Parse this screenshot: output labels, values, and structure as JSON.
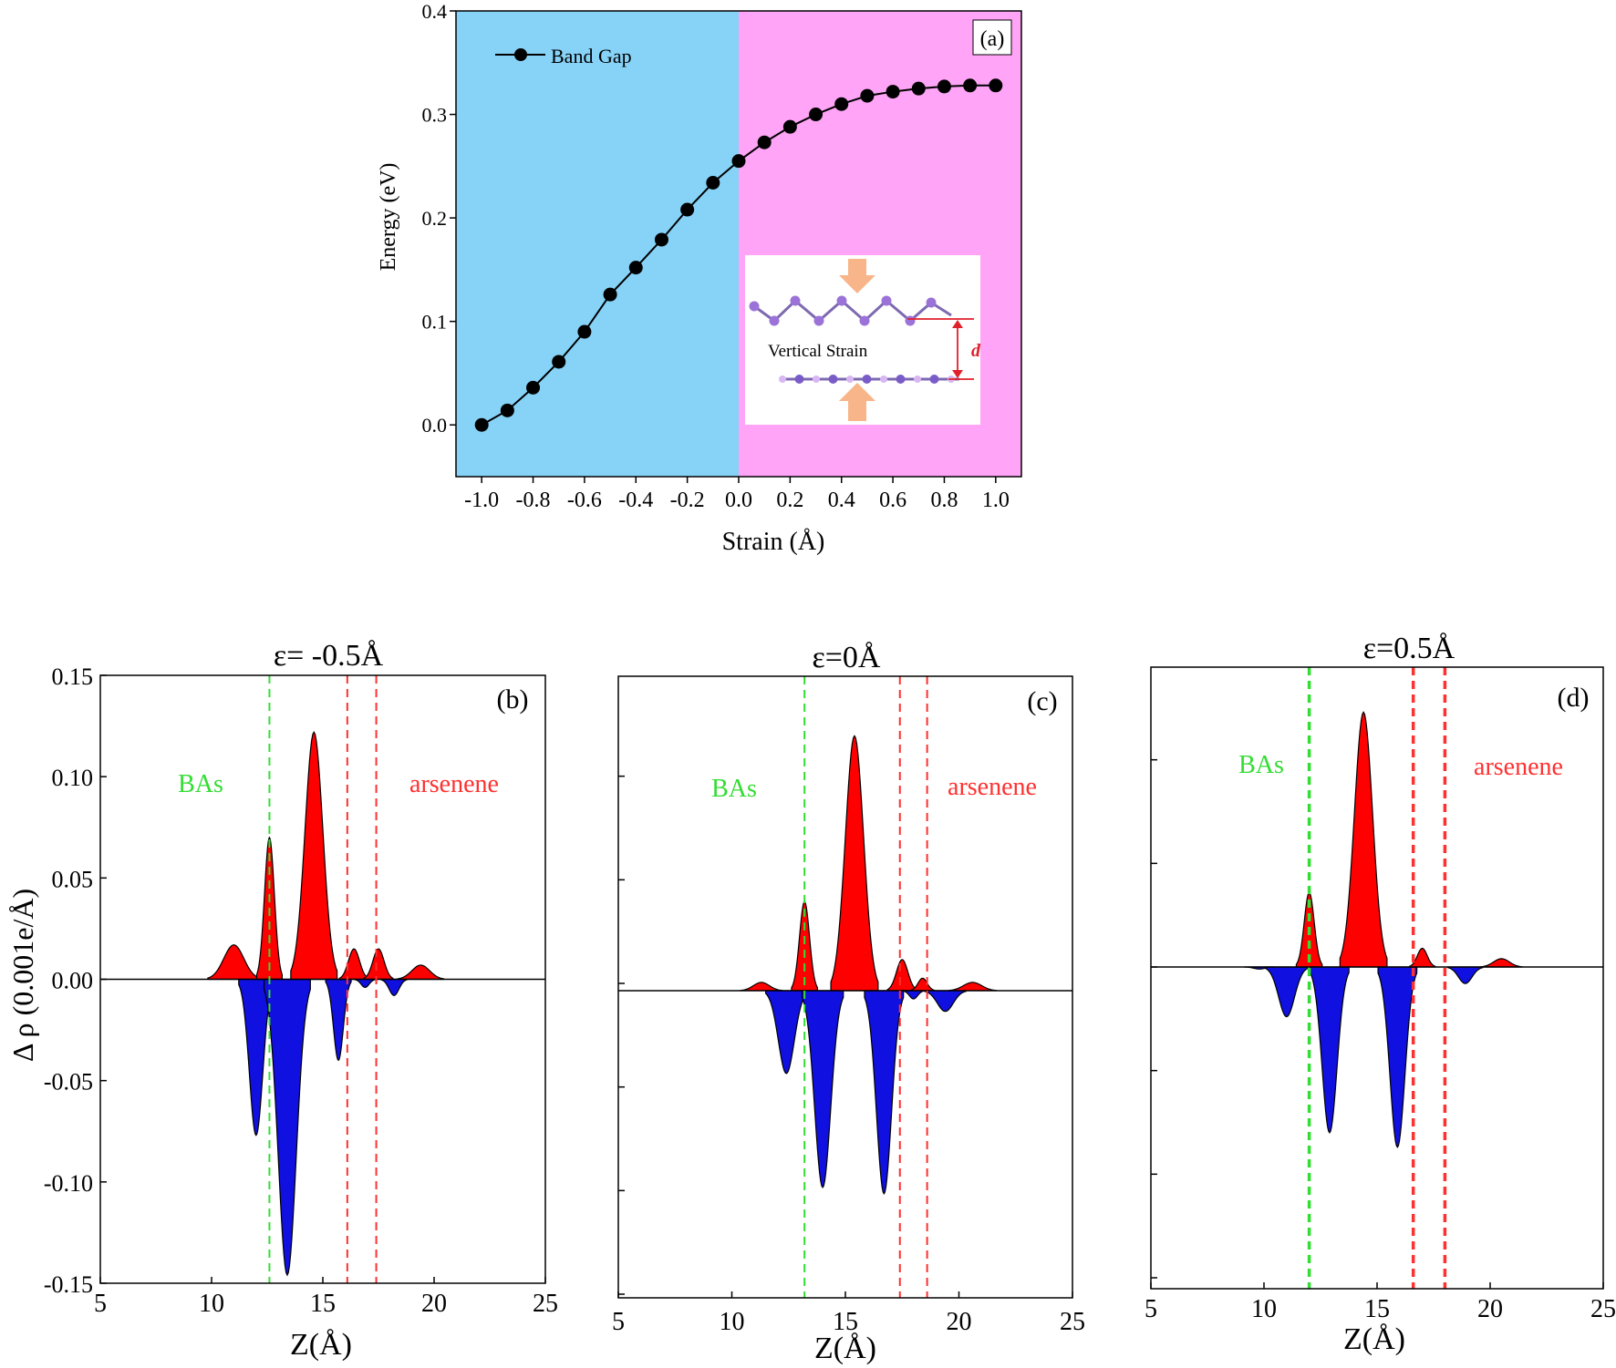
{
  "colors": {
    "compressive_region": "#87D3F8",
    "tensile_region": "#FFA4F6",
    "positive_fill": "#FF0000",
    "negative_fill": "#1010E0",
    "bas_line": "#33DD33",
    "arsenene_line": "#FF3030",
    "inset_arrow": "#F8B58A",
    "inset_atom": "#9B72D8",
    "inset_d": "#E0202A"
  },
  "chart_data": [
    {
      "id": "a",
      "type": "line",
      "panel_label": "(a)",
      "xlabel": "Strain (Å)",
      "ylabel": "Energy (eV)",
      "xlim": [
        -1.1,
        1.1
      ],
      "ylim": [
        -0.05,
        0.4
      ],
      "xticks": [
        -1.0,
        -0.8,
        -0.6,
        -0.4,
        -0.2,
        0.0,
        0.2,
        0.4,
        0.6,
        0.8,
        1.0
      ],
      "xtick_labels": [
        "-1.0",
        "-0.8",
        "-0.6",
        "-0.4",
        "-0.2",
        "0.0",
        "0.2",
        "0.4",
        "0.6",
        "0.8",
        "1.0"
      ],
      "yticks": [
        0.0,
        0.1,
        0.2,
        0.3,
        0.4
      ],
      "ytick_labels": [
        "0.0",
        "0.1",
        "0.2",
        "0.3",
        "0.4"
      ],
      "legend": "top-left",
      "series": [
        {
          "name": "Band Gap",
          "x": [
            -1.0,
            -0.9,
            -0.8,
            -0.7,
            -0.6,
            -0.5,
            -0.4,
            -0.3,
            -0.2,
            -0.1,
            0.0,
            0.1,
            0.2,
            0.3,
            0.4,
            0.5,
            0.6,
            0.7,
            0.8,
            0.9,
            1.0
          ],
          "y": [
            0.0,
            0.014,
            0.036,
            0.061,
            0.09,
            0.126,
            0.152,
            0.179,
            0.208,
            0.234,
            0.255,
            0.273,
            0.288,
            0.3,
            0.31,
            0.318,
            0.322,
            0.325,
            0.327,
            0.328,
            0.328
          ]
        }
      ],
      "inset": {
        "label": "Vertical Strain",
        "d_label": "d"
      }
    },
    {
      "id": "b",
      "type": "area",
      "title": "ε= -0.5Å",
      "panel_label": "(b)",
      "xlabel": "Z(Å)",
      "ylabel": "Δ ρ (0.001e/Å)",
      "xlim": [
        5,
        25
      ],
      "ylim": [
        -0.15,
        0.15
      ],
      "xticks": [
        5,
        10,
        15,
        20,
        25
      ],
      "xtick_labels": [
        "5",
        "10",
        "15",
        "20",
        "25"
      ],
      "yticks": [
        -0.15,
        -0.1,
        -0.05,
        0.0,
        0.05,
        0.1,
        0.15
      ],
      "ytick_labels": [
        "-0.15",
        "-0.10",
        "-0.05",
        "0.00",
        "0.05",
        "0.10",
        "0.15"
      ],
      "region_labels": [
        "BAs",
        "arsenene"
      ],
      "bas_line_x": 12.6,
      "arsenene_lines_x": [
        16.1,
        17.4
      ],
      "peaks": [
        {
          "x": 11.0,
          "y": 0.017,
          "w": 0.45
        },
        {
          "x": 12.0,
          "y": -0.077,
          "w": 0.3
        },
        {
          "x": 12.6,
          "y": 0.07,
          "w": 0.22
        },
        {
          "x": 13.4,
          "y": -0.146,
          "w": 0.4
        },
        {
          "x": 14.6,
          "y": 0.122,
          "w": 0.4
        },
        {
          "x": 15.7,
          "y": -0.04,
          "w": 0.22
        },
        {
          "x": 16.4,
          "y": 0.015,
          "w": 0.25
        },
        {
          "x": 16.9,
          "y": -0.004,
          "w": 0.18
        },
        {
          "x": 17.5,
          "y": 0.015,
          "w": 0.25
        },
        {
          "x": 18.2,
          "y": -0.008,
          "w": 0.22
        },
        {
          "x": 19.4,
          "y": 0.007,
          "w": 0.4
        }
      ]
    },
    {
      "id": "c",
      "type": "area",
      "title": "ε=0Å",
      "panel_label": "(c)",
      "xlabel": "Z(Å)",
      "xlim": [
        5,
        25
      ],
      "ylim": [
        -0.15,
        0.15
      ],
      "xticks": [
        5,
        10,
        15,
        20,
        25
      ],
      "xtick_labels": [
        "5",
        "10",
        "15",
        "20",
        "25"
      ],
      "yticks": [
        -0.15,
        -0.1,
        -0.05,
        0.0,
        0.05,
        0.1,
        0.15
      ],
      "ytick_labels": [],
      "region_labels": [
        "BAs",
        "arsenene"
      ],
      "bas_line_x": 13.2,
      "arsenene_lines_x": [
        17.4,
        18.6
      ],
      "peaks": [
        {
          "x": 11.3,
          "y": 0.004,
          "w": 0.35
        },
        {
          "x": 12.4,
          "y": -0.04,
          "w": 0.35
        },
        {
          "x": 13.2,
          "y": 0.043,
          "w": 0.22
        },
        {
          "x": 14.0,
          "y": -0.095,
          "w": 0.35
        },
        {
          "x": 15.4,
          "y": 0.123,
          "w": 0.4
        },
        {
          "x": 16.7,
          "y": -0.098,
          "w": 0.33
        },
        {
          "x": 17.5,
          "y": 0.015,
          "w": 0.25
        },
        {
          "x": 18.0,
          "y": -0.004,
          "w": 0.18
        },
        {
          "x": 18.4,
          "y": 0.006,
          "w": 0.2
        },
        {
          "x": 19.4,
          "y": -0.01,
          "w": 0.35
        },
        {
          "x": 20.6,
          "y": 0.004,
          "w": 0.4
        }
      ]
    },
    {
      "id": "d",
      "type": "area",
      "title": "ε=0.5Å",
      "panel_label": "(d)",
      "xlabel": "Z(Å)",
      "xlim": [
        5,
        25
      ],
      "ylim": [
        -0.15,
        0.15
      ],
      "xticks": [
        5,
        10,
        15,
        20,
        25
      ],
      "xtick_labels": [
        "5",
        "10",
        "15",
        "20",
        "25"
      ],
      "yticks": [
        -0.15,
        -0.1,
        -0.05,
        0.0,
        0.05,
        0.1,
        0.15
      ],
      "ytick_labels": [],
      "region_labels": [
        "BAs",
        "arsenene"
      ],
      "bas_line_x": 12.0,
      "arsenene_lines_x": [
        16.6,
        18.0
      ],
      "peaks": [
        {
          "x": 9.8,
          "y": -0.001,
          "w": 0.25
        },
        {
          "x": 11.0,
          "y": -0.024,
          "w": 0.35
        },
        {
          "x": 12.0,
          "y": 0.036,
          "w": 0.22
        },
        {
          "x": 12.9,
          "y": -0.08,
          "w": 0.33
        },
        {
          "x": 14.4,
          "y": 0.123,
          "w": 0.4
        },
        {
          "x": 15.9,
          "y": -0.087,
          "w": 0.33
        },
        {
          "x": 17.0,
          "y": 0.009,
          "w": 0.22
        },
        {
          "x": 18.9,
          "y": -0.008,
          "w": 0.3
        },
        {
          "x": 20.5,
          "y": 0.004,
          "w": 0.35
        }
      ]
    }
  ]
}
